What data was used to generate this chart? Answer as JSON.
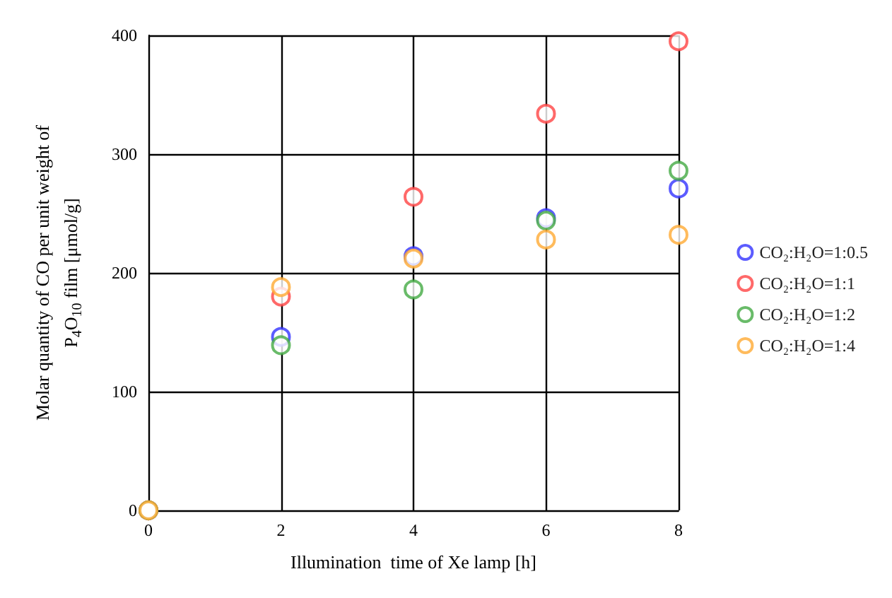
{
  "chart_data": {
    "type": "scatter",
    "xlabel": "Illumination  time of Xe lamp [h]",
    "ylabel": "Molar quantity of CO per unit weight of\nP$_{4}$O$_{10}$ film [μmol/g]",
    "x": [
      0,
      2,
      4,
      6,
      8
    ],
    "series": [
      {
        "name": "CO₂:H₂O=1:0.5",
        "color": "#3333ff",
        "values": [
          0,
          146,
          214,
          246,
          271
        ]
      },
      {
        "name": "CO₂:H₂O=1:1",
        "color": "#ff4444",
        "values": [
          0,
          180,
          264,
          334,
          395
        ]
      },
      {
        "name": "CO₂:H₂O=1:2",
        "color": "#44aa44",
        "values": [
          0,
          139,
          186,
          244,
          286
        ]
      },
      {
        "name": "CO₂:H₂O=1:4",
        "color": "#ffaa33",
        "values": [
          0,
          188,
          212,
          228,
          232
        ]
      }
    ],
    "xlim": [
      0,
      8
    ],
    "xticks": [
      0,
      2,
      4,
      6,
      8
    ],
    "ylim": [
      0,
      400
    ],
    "yticks": [
      0,
      100,
      200,
      300,
      400
    ],
    "grid": true,
    "legend": "right",
    "marker": "circle"
  }
}
